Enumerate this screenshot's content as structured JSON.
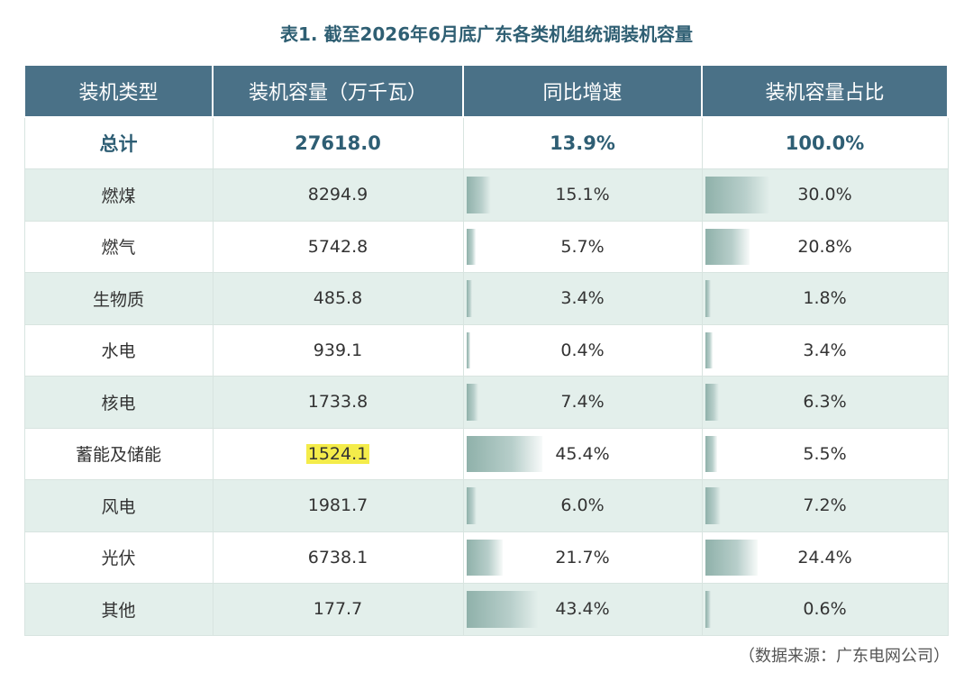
{
  "title": "表1. 截至2026年6月底广东各类机组统调装机容量",
  "headers": [
    "装机类型",
    "装机容量（万千瓦）",
    "同比增速",
    "装机容量占比"
  ],
  "total": {
    "type": "总计",
    "capacity": "27618.0",
    "growth": "13.9%",
    "share": "100.0%"
  },
  "rows": [
    {
      "type": "燃煤",
      "capacity": "8294.9",
      "growth": "15.1%",
      "growth_value": 15.1,
      "share": "30.0%",
      "share_value": 30.0
    },
    {
      "type": "燃气",
      "capacity": "5742.8",
      "growth": "5.7%",
      "growth_value": 5.7,
      "share": "20.8%",
      "share_value": 20.8
    },
    {
      "type": "生物质",
      "capacity": "485.8",
      "growth": "3.4%",
      "growth_value": 3.4,
      "share": "1.8%",
      "share_value": 1.8
    },
    {
      "type": "水电",
      "capacity": "939.1",
      "growth": "0.4%",
      "growth_value": 0.4,
      "share": "3.4%",
      "share_value": 3.4
    },
    {
      "type": "核电",
      "capacity": "1733.8",
      "growth": "7.4%",
      "growth_value": 7.4,
      "share": "6.3%",
      "share_value": 6.3
    },
    {
      "type": "蓄能及储能",
      "capacity": "1524.1",
      "capacity_highlighted": true,
      "growth": "45.4%",
      "growth_value": 45.4,
      "share": "5.5%",
      "share_value": 5.5
    },
    {
      "type": "风电",
      "capacity": "1981.7",
      "growth": "6.0%",
      "growth_value": 6.0,
      "share": "7.2%",
      "share_value": 7.2
    },
    {
      "type": "光伏",
      "capacity": "6738.1",
      "growth": "21.7%",
      "growth_value": 21.7,
      "share": "24.4%",
      "share_value": 24.4
    },
    {
      "type": "其他",
      "capacity": "177.7",
      "growth": "43.4%",
      "growth_value": 43.4,
      "share": "0.6%",
      "share_value": 0.6
    }
  ],
  "highlight_color": "#f4ec4a",
  "header_color": "#4a7187",
  "source": "（数据来源：广东电网公司）"
}
